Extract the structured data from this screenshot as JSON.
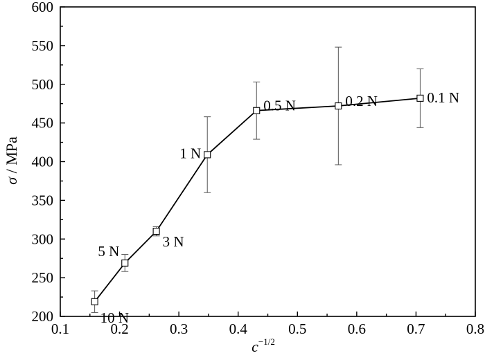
{
  "chart_data": {
    "type": "line",
    "xlabel_main": "c",
    "xlabel_sup": "−1/2",
    "ylabel_sym": "σ",
    "ylabel_rest": " / MPa",
    "xlim": [
      0.1,
      0.8
    ],
    "ylim": [
      200,
      600
    ],
    "x_ticks": [
      0.1,
      0.2,
      0.3,
      0.4,
      0.5,
      0.6,
      0.7,
      0.8
    ],
    "x_tick_labels": [
      "0.1",
      "0.2",
      "0.3",
      "0.4",
      "0.5",
      "0.6",
      "0.7",
      "0.8"
    ],
    "y_ticks": [
      200,
      250,
      300,
      350,
      400,
      450,
      500,
      550,
      600
    ],
    "y_tick_labels": [
      "200",
      "250",
      "300",
      "350",
      "400",
      "450",
      "500",
      "550",
      "600"
    ],
    "grid": false,
    "marker": "open-square",
    "series": [
      {
        "points": [
          {
            "x": 0.158,
            "y": 219,
            "err_low": 205,
            "err_high": 233,
            "label": "10 N",
            "label_pos": "below-right"
          },
          {
            "x": 0.209,
            "y": 269,
            "err_low": 258,
            "err_high": 280,
            "label": "5 N",
            "label_pos": "above-left"
          },
          {
            "x": 0.262,
            "y": 310,
            "err_low": 304,
            "err_high": 316,
            "label": "3 N",
            "label_pos": "right"
          },
          {
            "x": 0.348,
            "y": 409,
            "err_low": 360,
            "err_high": 458,
            "label": "1 N",
            "label_pos": "left"
          },
          {
            "x": 0.431,
            "y": 466,
            "err_low": 429,
            "err_high": 503,
            "label": "0.5 N",
            "label_pos": "above-right"
          },
          {
            "x": 0.569,
            "y": 472,
            "err_low": 396,
            "err_high": 548,
            "label": "0.2 N",
            "label_pos": "above-right"
          },
          {
            "x": 0.707,
            "y": 482,
            "err_low": 444,
            "err_high": 520,
            "label": "0.1 N",
            "label_pos": "right"
          }
        ]
      }
    ]
  }
}
